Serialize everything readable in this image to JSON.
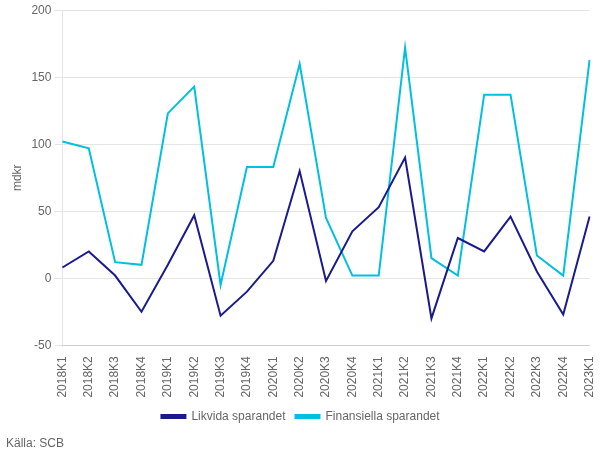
{
  "chart_data": {
    "type": "line",
    "ylabel": "mdkr",
    "annotations": [
      "Källa: SCB"
    ],
    "categories": [
      "2018K1",
      "2018K2",
      "2018K3",
      "2018K4",
      "2019K1",
      "2019K2",
      "2019K3",
      "2019K4",
      "2020K1",
      "2020K2",
      "2020K3",
      "2020K4",
      "2021K1",
      "2021K2",
      "2021K3",
      "2021K4",
      "2022K1",
      "2022K2",
      "2022K3",
      "2022K4",
      "2023K1"
    ],
    "series": [
      {
        "name": "Likvida sparandet",
        "color": "#1A1A8C",
        "values": [
          8,
          20,
          2,
          -25,
          10,
          47,
          -28,
          -10,
          13,
          80,
          -2,
          35,
          53,
          90,
          -30,
          30,
          20,
          46,
          5,
          -27,
          46
        ]
      },
      {
        "name": "Finansiella sparandet",
        "color": "#00BFDF",
        "values": [
          102,
          97,
          12,
          10,
          123,
          143,
          -5,
          83,
          83,
          160,
          45,
          2,
          2,
          172,
          15,
          2,
          137,
          137,
          17,
          2,
          163
        ]
      }
    ],
    "ylim": [
      -50,
      200
    ],
    "yticks": [
      -50,
      0,
      50,
      100,
      150,
      200
    ],
    "grid": true,
    "legend": "bottom"
  }
}
